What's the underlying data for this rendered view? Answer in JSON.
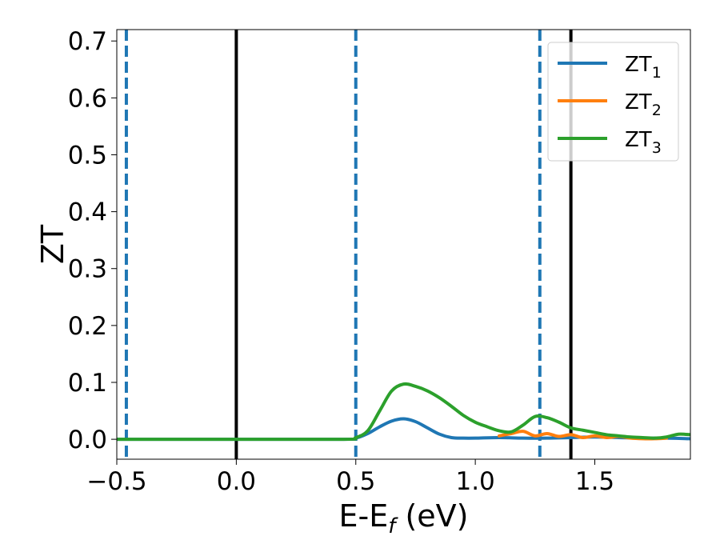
{
  "chart_data": {
    "type": "line",
    "title": "",
    "xlabel": "E-E",
    "xlabel_sub": "f",
    "xlabel_suffix": " (eV)",
    "ylabel": "ZT",
    "xlim": [
      -0.5,
      1.9
    ],
    "ylim": [
      -0.035,
      0.72
    ],
    "xticks": [
      -0.5,
      0.0,
      0.5,
      1.0,
      1.5
    ],
    "xtick_labels": [
      "−0.5",
      "0.0",
      "0.5",
      "1.0",
      "1.5"
    ],
    "yticks": [
      0.0,
      0.1,
      0.2,
      0.3,
      0.4,
      0.5,
      0.6,
      0.7
    ],
    "ytick_labels": [
      "0.0",
      "0.1",
      "0.2",
      "0.3",
      "0.4",
      "0.5",
      "0.6",
      "0.7"
    ],
    "grid": false,
    "legend_position": "top-right",
    "vlines": [
      {
        "x": -0.46,
        "style": "dashed",
        "color": "#1f77b4"
      },
      {
        "x": 0.0,
        "style": "solid",
        "color": "#000000"
      },
      {
        "x": 0.5,
        "style": "dashed",
        "color": "#1f77b4"
      },
      {
        "x": 1.27,
        "style": "dashed",
        "color": "#1f77b4"
      },
      {
        "x": 1.4,
        "style": "solid",
        "color": "#000000"
      }
    ],
    "series": [
      {
        "name": "ZT",
        "name_sub": "1",
        "color": "#1f77b4",
        "x": [
          -0.5,
          0.0,
          0.45,
          0.5,
          0.55,
          0.6,
          0.65,
          0.7,
          0.75,
          0.8,
          0.85,
          0.9,
          0.95,
          1.0,
          1.1,
          1.2,
          1.3,
          1.4,
          1.5,
          1.6,
          1.7,
          1.8,
          1.9
        ],
        "y": [
          0.0,
          0.0,
          0.0,
          0.002,
          0.01,
          0.022,
          0.032,
          0.036,
          0.031,
          0.02,
          0.009,
          0.003,
          0.002,
          0.002,
          0.003,
          0.002,
          0.002,
          0.003,
          0.004,
          0.003,
          0.002,
          0.002,
          0.001
        ]
      },
      {
        "name": "ZT",
        "name_sub": "2",
        "color": "#ff7f0e",
        "x": [
          1.1,
          1.15,
          1.2,
          1.25,
          1.3,
          1.35,
          1.4,
          1.45,
          1.5,
          1.55,
          1.6,
          1.65,
          1.7,
          1.75,
          1.8
        ],
        "y": [
          0.006,
          0.01,
          0.014,
          0.006,
          0.01,
          0.005,
          0.008,
          0.003,
          0.006,
          0.003,
          0.005,
          0.002,
          0.001,
          0.001,
          0.002
        ]
      },
      {
        "name": "ZT",
        "name_sub": "3",
        "color": "#2ca02c",
        "x": [
          -0.5,
          0.0,
          0.45,
          0.5,
          0.55,
          0.6,
          0.65,
          0.7,
          0.75,
          0.8,
          0.85,
          0.9,
          0.95,
          1.0,
          1.05,
          1.1,
          1.15,
          1.2,
          1.25,
          1.3,
          1.35,
          1.4,
          1.45,
          1.5,
          1.55,
          1.6,
          1.65,
          1.7,
          1.75,
          1.8,
          1.85,
          1.9
        ],
        "y": [
          0.0,
          0.0,
          0.0,
          0.003,
          0.015,
          0.05,
          0.085,
          0.097,
          0.093,
          0.085,
          0.073,
          0.058,
          0.042,
          0.03,
          0.022,
          0.015,
          0.013,
          0.025,
          0.04,
          0.038,
          0.03,
          0.02,
          0.016,
          0.012,
          0.008,
          0.006,
          0.004,
          0.003,
          0.002,
          0.004,
          0.009,
          0.008
        ]
      }
    ]
  }
}
